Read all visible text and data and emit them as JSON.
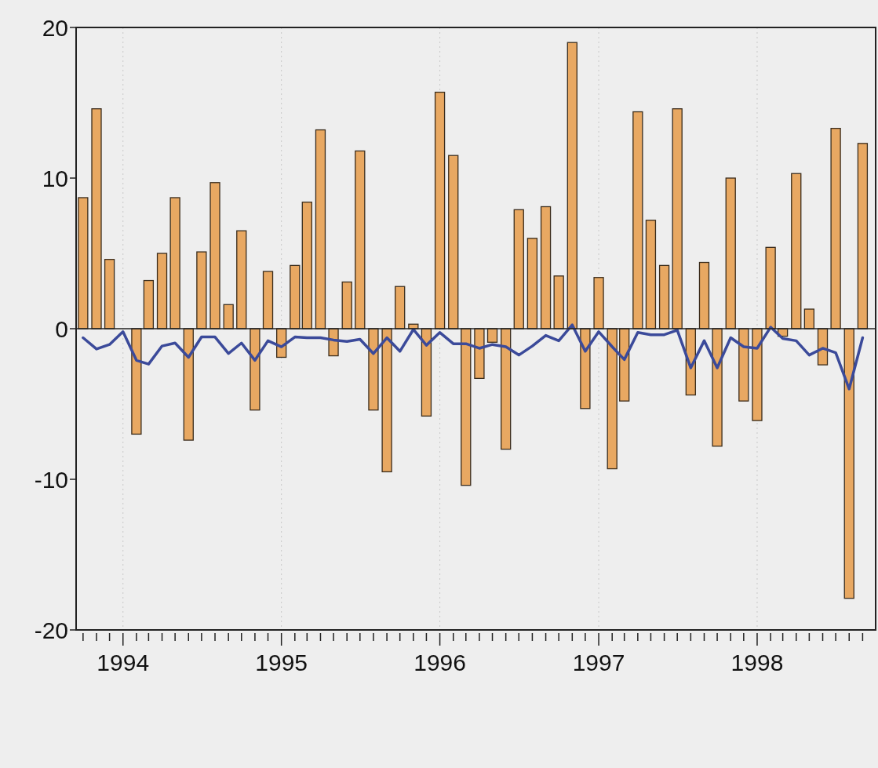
{
  "chart_data": {
    "type": "bar",
    "x": [
      "1993-10",
      "1993-11",
      "1993-12",
      "1994-01",
      "1994-02",
      "1994-03",
      "1994-04",
      "1994-05",
      "1994-06",
      "1994-07",
      "1994-08",
      "1994-09",
      "1994-10",
      "1994-11",
      "1994-12",
      "1995-01",
      "1995-02",
      "1995-03",
      "1995-04",
      "1995-05",
      "1995-06",
      "1995-07",
      "1995-08",
      "1995-09",
      "1995-10",
      "1995-11",
      "1995-12",
      "1996-01",
      "1996-02",
      "1996-03",
      "1996-04",
      "1996-05",
      "1996-06",
      "1996-07",
      "1996-08",
      "1996-09",
      "1996-10",
      "1996-11",
      "1996-12",
      "1997-01",
      "1997-02",
      "1997-03",
      "1997-04",
      "1997-05",
      "1997-06",
      "1997-07",
      "1997-08",
      "1997-09",
      "1997-10",
      "1997-11",
      "1997-12",
      "1998-01",
      "1998-02",
      "1998-03",
      "1998-04",
      "1998-05",
      "1998-06",
      "1998-07",
      "1998-08",
      "1998-09"
    ],
    "series": [
      {
        "color": "#e8a862",
        "values": [
          8.7,
          14.6,
          4.6,
          0,
          -7.0,
          3.2,
          5.0,
          8.7,
          -7.4,
          5.1,
          9.7,
          1.6,
          6.5,
          -5.4,
          3.8,
          -1.9,
          4.2,
          8.4,
          13.2,
          -1.8,
          3.1,
          11.8,
          -5.4,
          -9.5,
          2.8,
          0.3,
          -5.8,
          15.7,
          11.5,
          -10.4,
          -3.3,
          -0.9,
          -8.0,
          7.9,
          6.0,
          8.1,
          3.5,
          19.0,
          -5.3,
          3.4,
          -9.3,
          -4.8,
          14.4,
          7.2,
          4.2,
          14.6,
          -4.4,
          4.4,
          -7.8,
          10.0,
          -4.8,
          -6.1,
          5.4,
          -0.5,
          10.3,
          1.3,
          -2.4,
          13.3,
          -17.9,
          12.3
        ]
      },
      {
        "type": "line",
        "color": "#3b4a9a",
        "values": [
          -0.6,
          -1.35,
          -1.05,
          -0.2,
          -2.1,
          -2.35,
          -1.15,
          -0.95,
          -1.9,
          -0.55,
          -0.55,
          -1.65,
          -0.95,
          -2.1,
          -0.8,
          -1.2,
          -0.55,
          -0.6,
          -0.6,
          -0.75,
          -0.85,
          -0.7,
          -1.65,
          -0.6,
          -1.5,
          -0.05,
          -1.1,
          -0.25,
          -1.0,
          -1.0,
          -1.3,
          -1.05,
          -1.2,
          -1.75,
          -1.15,
          -0.45,
          -0.8,
          0.25,
          -1.5,
          -0.2,
          -1.2,
          -2.05,
          -0.25,
          -0.4,
          -0.4,
          -0.1,
          -2.6,
          -0.8,
          -2.6,
          -0.6,
          -1.2,
          -1.3,
          0.1,
          -0.65,
          -0.8,
          -1.75,
          -1.3,
          -1.6,
          -4.0,
          -0.6
        ]
      }
    ],
    "xlim": [
      "1993-09-15",
      "1998-10-01"
    ],
    "xticks": [
      {
        "value": "1993-10",
        "label": null
      },
      {
        "value": "1993-11",
        "label": null
      },
      {
        "value": "1993-12",
        "label": null
      },
      "1994",
      {
        "value": "1994-02",
        "label": null
      },
      {
        "value": "1994-03",
        "label": null
      },
      {
        "value": "1994-04",
        "label": null
      },
      {
        "value": "1994-05",
        "label": null
      },
      {
        "value": "1994-06",
        "label": null
      },
      {
        "value": "1994-07",
        "label": null
      },
      {
        "value": "1994-08",
        "label": null
      },
      {
        "value": "1994-09",
        "label": null
      },
      {
        "value": "1994-10",
        "label": null
      },
      {
        "value": "1994-11",
        "label": null
      },
      {
        "value": "1994-12",
        "label": null
      },
      "1995",
      {
        "value": "1995-02",
        "label": null
      },
      {
        "value": "1995-03",
        "label": null
      },
      {
        "value": "1995-04",
        "label": null
      },
      {
        "value": "1995-05",
        "label": null
      },
      {
        "value": "1995-06",
        "label": null
      },
      {
        "value": "1995-07",
        "label": null
      },
      {
        "value": "1995-08",
        "label": null
      },
      {
        "value": "1995-09",
        "label": null
      },
      {
        "value": "1995-10",
        "label": null
      },
      {
        "value": "1995-11",
        "label": null
      },
      {
        "value": "1995-12",
        "label": null
      },
      "1996",
      {
        "value": "1996-02",
        "label": null
      },
      {
        "value": "1996-03",
        "label": null
      },
      {
        "value": "1996-04",
        "label": null
      },
      {
        "value": "1996-05",
        "label": null
      },
      {
        "value": "1996-06",
        "label": null
      },
      {
        "value": "1996-07",
        "label": null
      },
      {
        "value": "1996-08",
        "label": null
      },
      {
        "value": "1996-09",
        "label": null
      },
      {
        "value": "1996-10",
        "label": null
      },
      {
        "value": "1996-11",
        "label": null
      },
      {
        "value": "1996-12",
        "label": null
      },
      "1997",
      {
        "value": "1997-02",
        "label": null
      },
      {
        "value": "1997-03",
        "label": null
      },
      {
        "value": "1997-04",
        "label": null
      },
      {
        "value": "1997-05",
        "label": null
      },
      {
        "value": "1997-06",
        "label": null
      },
      {
        "value": "1997-07",
        "label": null
      },
      {
        "value": "1997-08",
        "label": null
      },
      {
        "value": "1997-09",
        "label": null
      },
      {
        "value": "1997-10",
        "label": null
      },
      {
        "value": "1997-11",
        "label": null
      },
      {
        "value": "1997-12",
        "label": null
      },
      "1998",
      {
        "value": "1998-02",
        "label": null
      },
      {
        "value": "1998-03",
        "label": null
      },
      {
        "value": "1998-04",
        "label": null
      },
      {
        "value": "1998-05",
        "label": null
      },
      {
        "value": "1998-06",
        "label": null
      },
      {
        "value": "1998-07",
        "label": null
      },
      {
        "value": "1998-08",
        "label": null
      },
      {
        "value": "1998-09",
        "label": null
      }
    ],
    "ylim": [
      -20,
      20
    ],
    "yticks": [
      -20,
      -10,
      0,
      10,
      20
    ],
    "grid": "x"
  }
}
